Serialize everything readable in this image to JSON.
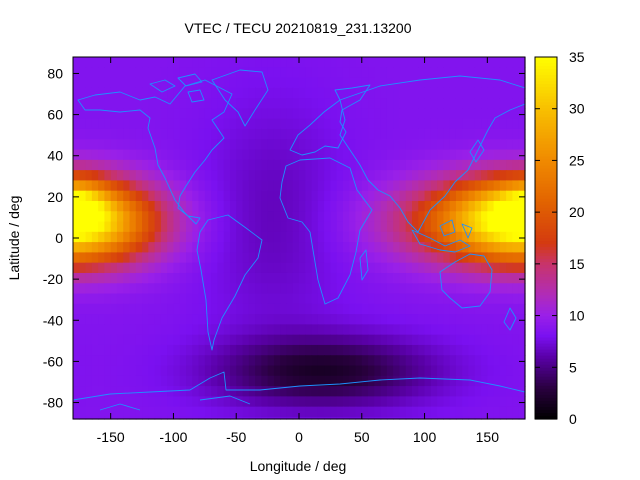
{
  "chart_data": {
    "type": "heatmap",
    "title": "VTEC / TECU 20210819_231.13200",
    "xlabel": "Longitude / deg",
    "ylabel": "Latitude / deg",
    "xlim": [
      -180,
      180
    ],
    "ylim": [
      -88,
      88
    ],
    "xticks": [
      -150,
      -100,
      -50,
      0,
      50,
      100,
      150
    ],
    "yticks": [
      -80,
      -60,
      -40,
      -20,
      0,
      20,
      40,
      60,
      80
    ],
    "colorbar": {
      "range": [
        0,
        35
      ],
      "ticks": [
        0,
        5,
        10,
        15,
        20,
        25,
        30,
        35
      ],
      "palette": [
        {
          "v": 0,
          "color": "#000000"
        },
        {
          "v": 3,
          "color": "#2a0040"
        },
        {
          "v": 6,
          "color": "#5a00a8"
        },
        {
          "v": 8,
          "color": "#7a10f0"
        },
        {
          "v": 10,
          "color": "#9a20e8"
        },
        {
          "v": 12,
          "color": "#b02cb8"
        },
        {
          "v": 15,
          "color": "#c8346a"
        },
        {
          "v": 17,
          "color": "#d43a10"
        },
        {
          "v": 21,
          "color": "#e26400"
        },
        {
          "v": 25,
          "color": "#f08a00"
        },
        {
          "v": 30,
          "color": "#f8c000"
        },
        {
          "v": 35,
          "color": "#ffff00"
        }
      ]
    },
    "field": {
      "base": 8.5,
      "features": [
        {
          "label": "equatorial anomaly west",
          "lon": -175,
          "lat": 8,
          "amp": 17,
          "sig_lon": 40,
          "sig_lat": 14
        },
        {
          "label": "anomaly crest west",
          "lon": -175,
          "lat": 17,
          "amp": 6,
          "sig_lon": 15,
          "sig_lat": 8
        },
        {
          "label": "equatorial anomaly east",
          "lon": 155,
          "lat": 8,
          "amp": 14,
          "sig_lon": 55,
          "sig_lat": 14
        },
        {
          "label": "anomaly crest east",
          "lon": 165,
          "lat": 18,
          "amp": 2,
          "sig_lon": 25,
          "sig_lat": 8
        },
        {
          "label": "low TEC South Atlantic",
          "lon": 20,
          "lat": -65,
          "amp": -6.5,
          "sig_lon": 60,
          "sig_lat": 12
        },
        {
          "label": "low TEC Atlantic",
          "lon": -20,
          "lat": 10,
          "amp": -2,
          "sig_lon": 40,
          "sig_lat": 40
        }
      ]
    }
  }
}
